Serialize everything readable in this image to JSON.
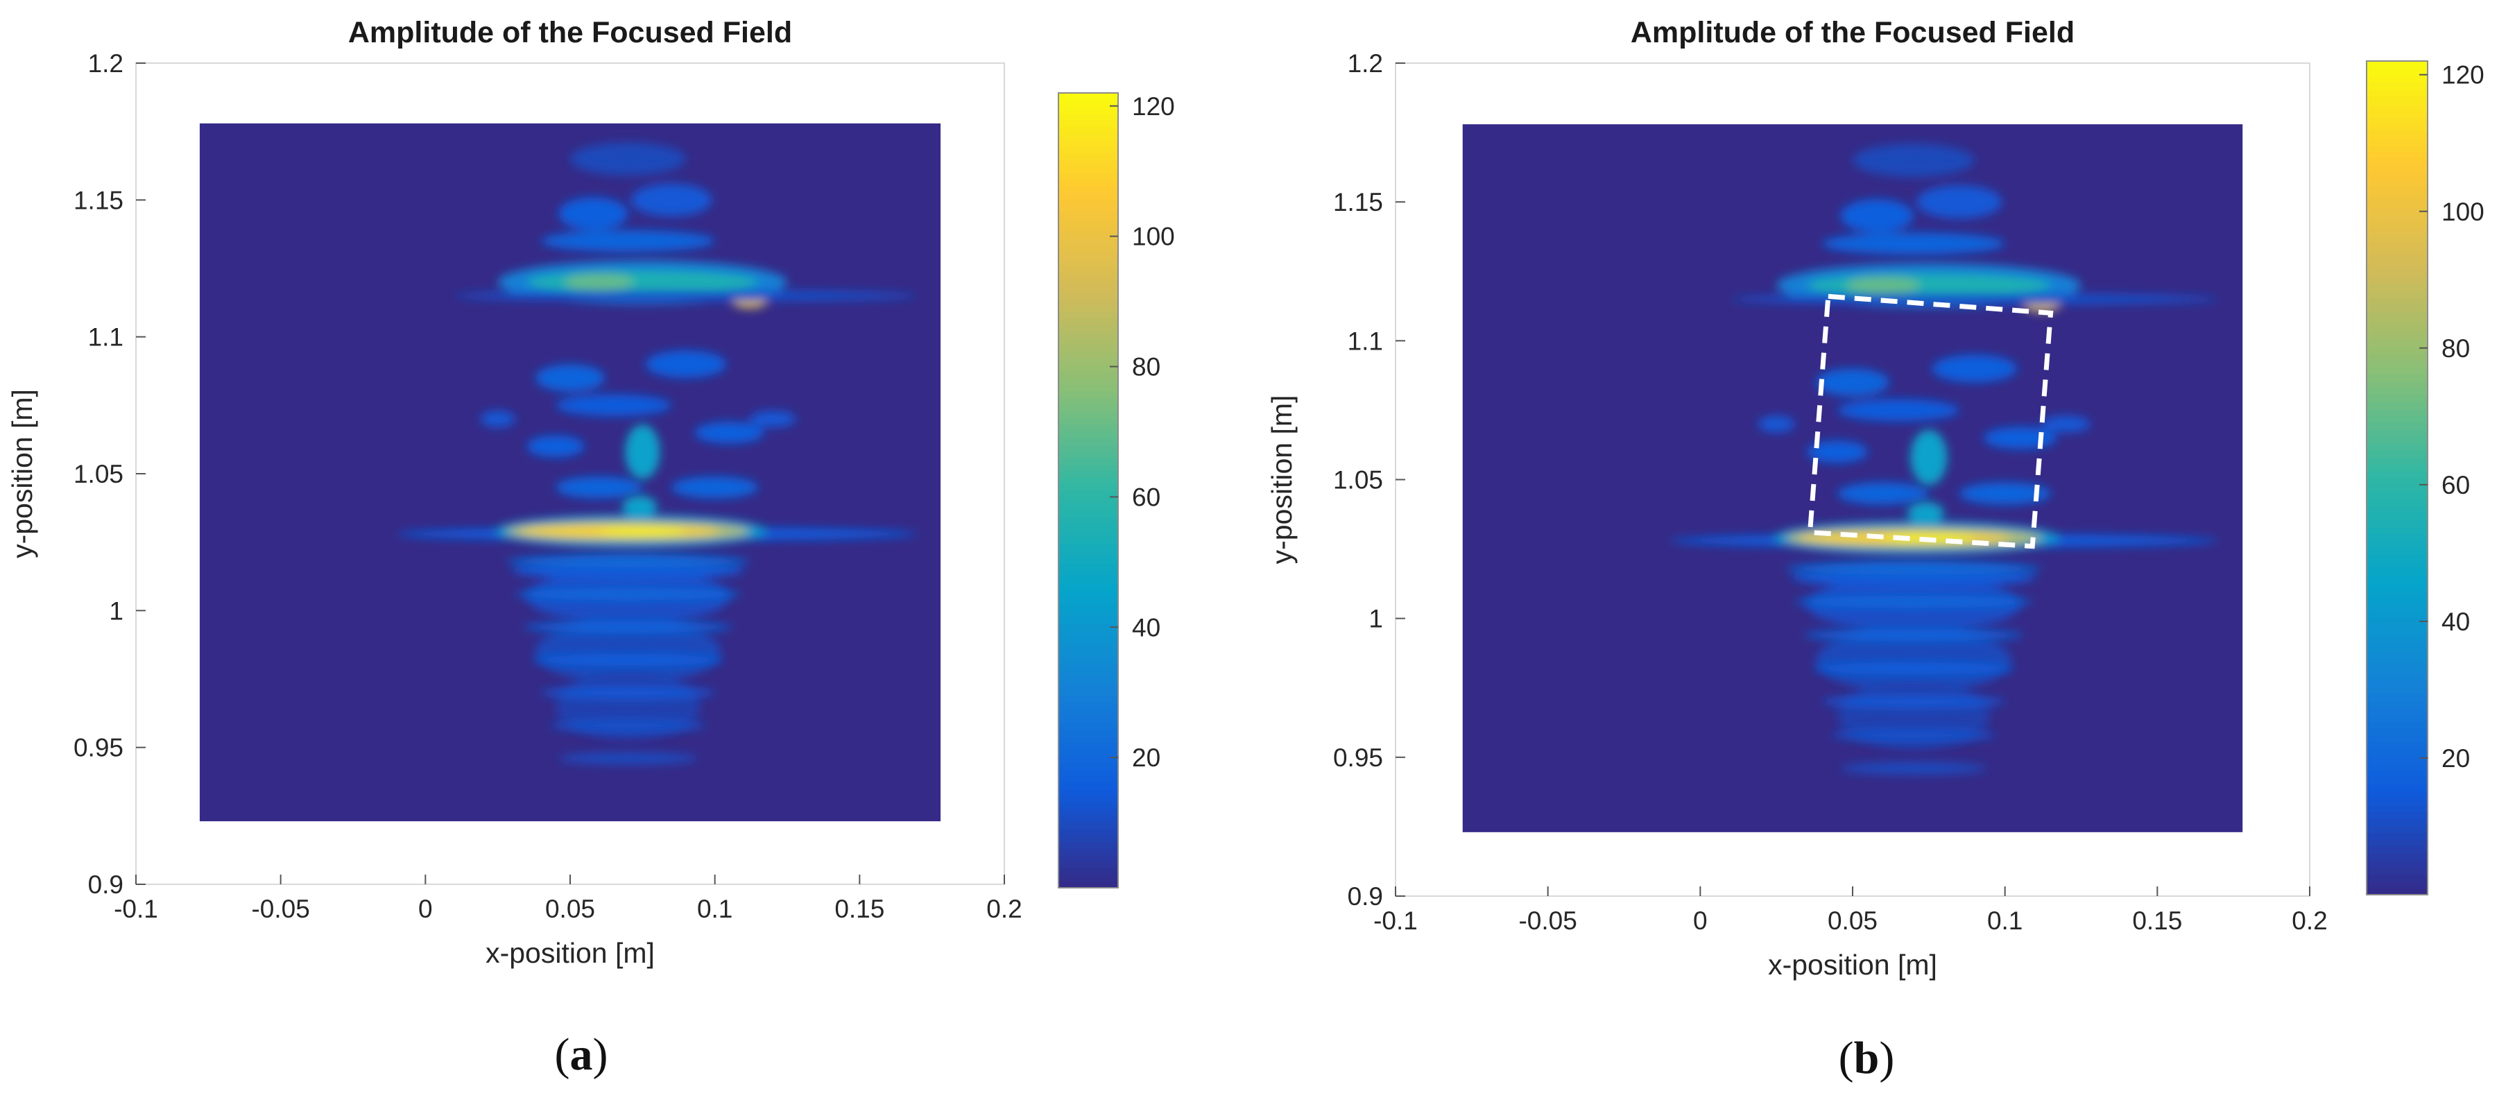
{
  "figure": {
    "panels": [
      {
        "label_open": "(",
        "label_letter": "a",
        "label_close": ")"
      },
      {
        "label_open": "(",
        "label_letter": "b",
        "label_close": ")"
      }
    ]
  },
  "chart_data": [
    {
      "type": "heatmap",
      "title": "Amplitude of the Focused Field",
      "xlabel": "x-position [m]",
      "ylabel": "y-position [m]",
      "xlim": [
        -0.1,
        0.2
      ],
      "ylim": [
        0.9,
        1.2
      ],
      "xticks": [
        -0.1,
        -0.05,
        0,
        0.05,
        0.1,
        0.15,
        0.2
      ],
      "xtick_labels": [
        "-0.1",
        "-0.05",
        "0",
        "0.05",
        "0.1",
        "0.15",
        "0.2"
      ],
      "yticks": [
        0.9,
        0.95,
        1,
        1.05,
        1.1,
        1.15,
        1.2
      ],
      "ytick_labels": [
        "0.9",
        "0.95",
        "1",
        "1.05",
        "1.1",
        "1.15",
        "1.2"
      ],
      "image_extent": {
        "x": [
          -0.078,
          0.178
        ],
        "y": [
          0.923,
          1.178
        ]
      },
      "colorbar": {
        "range": [
          0,
          122
        ],
        "ticks": [
          20,
          40,
          60,
          80,
          100,
          120
        ],
        "tick_labels": [
          "20",
          "40",
          "60",
          "80",
          "100",
          "120"
        ],
        "colors": [
          "#352a87",
          "#0f5cdd",
          "#1481d6",
          "#06a4ca",
          "#2eb7a4",
          "#87bf77",
          "#d1bb59",
          "#fec832",
          "#f9fb0e"
        ]
      },
      "features": [
        {
          "name": "upper-reflection-band",
          "x_range": [
            0.03,
            0.12
          ],
          "y": 1.12,
          "peak_amplitude": 70
        },
        {
          "name": "upper-hotspot",
          "x": 0.11,
          "y": 1.113,
          "peak_amplitude": 95
        },
        {
          "name": "central-blob",
          "x": 0.075,
          "y": 1.06,
          "peak_amplitude": 55
        },
        {
          "name": "lower-reflection-band",
          "x_range": [
            0.03,
            0.11
          ],
          "y": 1.03,
          "peak_amplitude": 121
        }
      ],
      "overlay_polygon": null
    },
    {
      "type": "heatmap",
      "title": "Amplitude of the Focused Field",
      "xlabel": "x-position [m]",
      "ylabel": "y-position [m]",
      "xlim": [
        -0.1,
        0.2
      ],
      "ylim": [
        0.9,
        1.2
      ],
      "xticks": [
        -0.1,
        -0.05,
        0,
        0.05,
        0.1,
        0.15,
        0.2
      ],
      "xtick_labels": [
        "-0.1",
        "-0.05",
        "0",
        "0.05",
        "0.1",
        "0.15",
        "0.2"
      ],
      "yticks": [
        0.9,
        0.95,
        1,
        1.05,
        1.1,
        1.15,
        1.2
      ],
      "ytick_labels": [
        "0.9",
        "0.95",
        "1",
        "1.05",
        "1.1",
        "1.15",
        "1.2"
      ],
      "image_extent": {
        "x": [
          -0.078,
          0.178
        ],
        "y": [
          0.923,
          1.178
        ]
      },
      "colorbar": {
        "range": [
          0,
          122
        ],
        "ticks": [
          20,
          40,
          60,
          80,
          100,
          120
        ],
        "tick_labels": [
          "20",
          "40",
          "60",
          "80",
          "100",
          "120"
        ],
        "colors": [
          "#352a87",
          "#0f5cdd",
          "#1481d6",
          "#06a4ca",
          "#2eb7a4",
          "#87bf77",
          "#d1bb59",
          "#fec832",
          "#f9fb0e"
        ]
      },
      "features": [
        {
          "name": "upper-reflection-band",
          "x_range": [
            0.03,
            0.12
          ],
          "y": 1.12,
          "peak_amplitude": 70
        },
        {
          "name": "upper-hotspot",
          "x": 0.11,
          "y": 1.113,
          "peak_amplitude": 95
        },
        {
          "name": "central-blob",
          "x": 0.075,
          "y": 1.06,
          "peak_amplitude": 55
        },
        {
          "name": "lower-reflection-band",
          "x_range": [
            0.03,
            0.11
          ],
          "y": 1.03,
          "peak_amplitude": 121
        }
      ],
      "overlay_polygon": {
        "style": "white-dashed",
        "points": [
          [
            0.042,
            1.116
          ],
          [
            0.115,
            1.11
          ],
          [
            0.109,
            1.026
          ],
          [
            0.036,
            1.031
          ]
        ]
      }
    }
  ]
}
